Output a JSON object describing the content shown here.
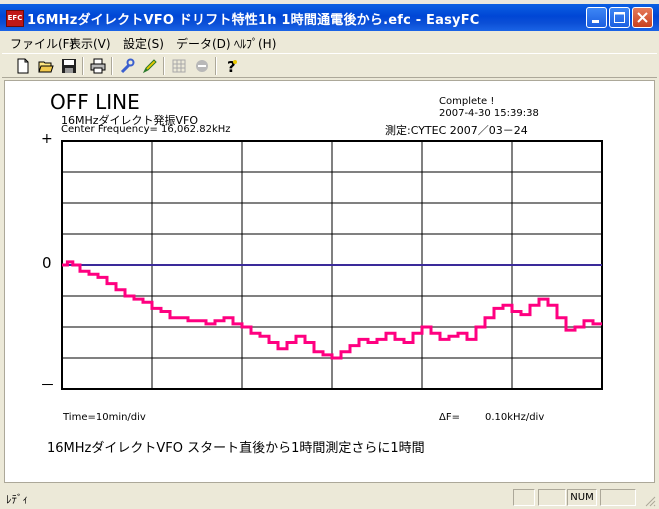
{
  "window": {
    "icon_label": "EFC",
    "title": "16MHzダイレクトVFO ドリフト特性1h 1時間通電後から.efc - EasyFC"
  },
  "menu": [
    {
      "label": "ファイル(F)"
    },
    {
      "label": "表示(V)"
    },
    {
      "label": "設定(S)"
    },
    {
      "label": "データ(D)"
    },
    {
      "label": "ﾍﾙﾌﾟ(H)"
    }
  ],
  "toolbar": {
    "icons": [
      "new-file-icon",
      "open-folder-icon",
      "save-icon",
      "print-icon",
      "wrench-icon",
      "pen-icon",
      "grid-icon",
      "stop-icon",
      "help-icon"
    ]
  },
  "plot": {
    "status": "OFF LINE",
    "device": "16MHzダイレクト発振VFO",
    "center_frequency": "Center Frequency= 16,062.82kHz",
    "complete": "Complete !",
    "datetime": "2007-4-30  15:39:38",
    "measured_by": "測定:CYTEC  2007／03－24",
    "y_plus": "+",
    "y_zero": "0",
    "y_minus": "－",
    "time_div": "Time=10min/div",
    "delta_f_label": "ΔF=",
    "delta_f_value": "0.10kHz/div",
    "comment": "16MHzダイレクトVFO  スタート直後から1時間測定さらに1時間"
  },
  "chart_data": {
    "type": "line",
    "x_unit": "min",
    "y_unit": "kHz",
    "xlim": [
      0,
      60
    ],
    "ylim": [
      -0.4,
      0.4
    ],
    "grid": true,
    "divisions": {
      "x": 6,
      "y": 8
    },
    "zero_line_color": "#3a2a9a",
    "series": [
      {
        "color": "#ff0080",
        "points": [
          [
            0,
            0
          ],
          [
            0.6,
            0.01
          ],
          [
            1.2,
            0
          ],
          [
            2,
            -0.02
          ],
          [
            3,
            -0.03
          ],
          [
            4,
            -0.04
          ],
          [
            5,
            -0.06
          ],
          [
            6,
            -0.08
          ],
          [
            7,
            -0.1
          ],
          [
            8,
            -0.11
          ],
          [
            9,
            -0.12
          ],
          [
            10,
            -0.14
          ],
          [
            11,
            -0.15
          ],
          [
            12,
            -0.17
          ],
          [
            13,
            -0.17
          ],
          [
            14,
            -0.18
          ],
          [
            15,
            -0.18
          ],
          [
            16,
            -0.19
          ],
          [
            17,
            -0.18
          ],
          [
            18,
            -0.17
          ],
          [
            19,
            -0.19
          ],
          [
            20,
            -0.2
          ],
          [
            21,
            -0.22
          ],
          [
            22,
            -0.23
          ],
          [
            23,
            -0.25
          ],
          [
            24,
            -0.27
          ],
          [
            25,
            -0.25
          ],
          [
            26,
            -0.23
          ],
          [
            27,
            -0.25
          ],
          [
            28,
            -0.28
          ],
          [
            29,
            -0.29
          ],
          [
            30,
            -0.3
          ],
          [
            31,
            -0.28
          ],
          [
            32,
            -0.26
          ],
          [
            33,
            -0.24
          ],
          [
            34,
            -0.25
          ],
          [
            35,
            -0.24
          ],
          [
            36,
            -0.22
          ],
          [
            37,
            -0.24
          ],
          [
            38,
            -0.25
          ],
          [
            39,
            -0.22
          ],
          [
            40,
            -0.2
          ],
          [
            41,
            -0.22
          ],
          [
            42,
            -0.24
          ],
          [
            43,
            -0.23
          ],
          [
            44,
            -0.22
          ],
          [
            45,
            -0.24
          ],
          [
            46,
            -0.2
          ],
          [
            47,
            -0.17
          ],
          [
            48,
            -0.14
          ],
          [
            49,
            -0.13
          ],
          [
            50,
            -0.15
          ],
          [
            51,
            -0.16
          ],
          [
            52,
            -0.13
          ],
          [
            53,
            -0.11
          ],
          [
            54,
            -0.13
          ],
          [
            55,
            -0.17
          ],
          [
            56,
            -0.21
          ],
          [
            57,
            -0.2
          ],
          [
            58,
            -0.18
          ],
          [
            59,
            -0.19
          ],
          [
            60,
            -0.19
          ]
        ]
      }
    ]
  },
  "statusbar": {
    "text": "ﾚﾃﾞｨ",
    "num": "NUM"
  }
}
